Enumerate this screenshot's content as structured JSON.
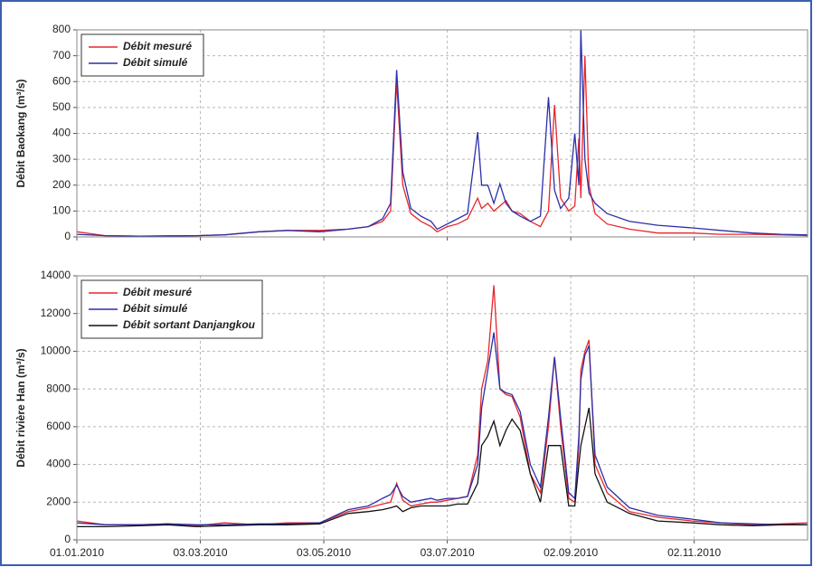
{
  "chart_data": [
    {
      "type": "line",
      "ylabel": "Débit Baokang (m³/s)",
      "x": [
        "01.01.2010",
        "15.01.2010",
        "01.02.2010",
        "15.02.2010",
        "01.03.2010",
        "15.03.2010",
        "01.04.2010",
        "15.04.2010",
        "01.05.2010",
        "15.05.2010",
        "25.05.2010",
        "01.06.2010",
        "05.06.2010",
        "08.06.2010",
        "11.06.2010",
        "15.06.2010",
        "20.06.2010",
        "25.06.2010",
        "28.06.2010",
        "03.07.2010",
        "08.07.2010",
        "13.07.2010",
        "18.07.2010",
        "20.07.2010",
        "23.07.2010",
        "26.07.2010",
        "29.07.2010",
        "01.08.2010",
        "04.08.2010",
        "08.08.2010",
        "13.08.2010",
        "18.08.2010",
        "22.08.2010",
        "25.08.2010",
        "28.08.2010",
        "01.09.2010",
        "04.09.2010",
        "06.09.2010",
        "07.09.2010",
        "09.09.2010",
        "11.09.2010",
        "14.09.2010",
        "20.09.2010",
        "01.10.2010",
        "15.10.2010",
        "01.11.2010",
        "15.11.2010",
        "01.12.2010",
        "15.12.2010",
        "28.12.2010"
      ],
      "xlim": [
        "01.01.2010",
        "28.12.2010"
      ],
      "ylim": [
        0,
        800
      ],
      "yticks": [
        0,
        100,
        200,
        300,
        400,
        500,
        600,
        700,
        800
      ],
      "grid": true,
      "legend": "upper left",
      "series": [
        {
          "name": "Débit mesuré",
          "color": "#e8262b",
          "values": [
            20,
            5,
            3,
            5,
            5,
            8,
            20,
            25,
            25,
            30,
            40,
            60,
            100,
            600,
            200,
            90,
            60,
            40,
            20,
            40,
            50,
            70,
            150,
            110,
            130,
            100,
            120,
            140,
            100,
            90,
            60,
            40,
            100,
            510,
            150,
            100,
            120,
            380,
            150,
            700,
            200,
            90,
            50,
            30,
            15,
            15,
            10,
            10,
            8,
            5
          ]
        },
        {
          "name": "Débit simulé",
          "color": "#2b2fa8",
          "values": [
            10,
            5,
            3,
            3,
            5,
            8,
            20,
            25,
            20,
            30,
            40,
            70,
            130,
            645,
            250,
            110,
            80,
            60,
            30,
            50,
            70,
            90,
            405,
            200,
            200,
            130,
            205,
            130,
            100,
            80,
            60,
            80,
            540,
            180,
            110,
            150,
            400,
            200,
            800,
            300,
            170,
            130,
            90,
            60,
            45,
            35,
            25,
            15,
            10,
            8
          ]
        }
      ]
    },
    {
      "type": "line",
      "ylabel": "Débit rivière Han (m³/s)",
      "x": [
        "01.01.2010",
        "15.01.2010",
        "01.02.2010",
        "15.02.2010",
        "01.03.2010",
        "15.03.2010",
        "01.04.2010",
        "15.04.2010",
        "01.05.2010",
        "15.05.2010",
        "25.05.2010",
        "01.06.2010",
        "05.06.2010",
        "08.06.2010",
        "11.06.2010",
        "15.06.2010",
        "20.06.2010",
        "25.06.2010",
        "28.06.2010",
        "03.07.2010",
        "08.07.2010",
        "13.07.2010",
        "18.07.2010",
        "20.07.2010",
        "23.07.2010",
        "26.07.2010",
        "29.07.2010",
        "01.08.2010",
        "04.08.2010",
        "08.08.2010",
        "13.08.2010",
        "18.08.2010",
        "22.08.2010",
        "25.08.2010",
        "28.08.2010",
        "01.09.2010",
        "04.09.2010",
        "06.09.2010",
        "07.09.2010",
        "09.09.2010",
        "11.09.2010",
        "14.09.2010",
        "20.09.2010",
        "01.10.2010",
        "15.10.2010",
        "01.11.2010",
        "15.11.2010",
        "01.12.2010",
        "15.12.2010",
        "28.12.2010"
      ],
      "xlim": [
        "01.01.2010",
        "28.12.2010"
      ],
      "xticks": [
        "01.01.2010",
        "03.03.2010",
        "03.05.2010",
        "03.07.2010",
        "02.09.2010",
        "02.11.2010"
      ],
      "ylim": [
        0,
        14000
      ],
      "yticks": [
        0,
        2000,
        4000,
        6000,
        8000,
        10000,
        12000,
        14000
      ],
      "grid": true,
      "legend": "upper left",
      "series": [
        {
          "name": "Débit mesuré",
          "color": "#e8262b",
          "values": [
            1000,
            800,
            800,
            850,
            750,
            900,
            800,
            900,
            900,
            1500,
            1700,
            1900,
            2000,
            3000,
            2100,
            1800,
            1900,
            2000,
            2000,
            2100,
            2200,
            2300,
            4500,
            8000,
            9500,
            13500,
            8000,
            7700,
            7600,
            6500,
            3500,
            2500,
            6000,
            9700,
            6000,
            2200,
            2000,
            5000,
            9000,
            10000,
            10600,
            4000,
            2500,
            1500,
            1200,
            1000,
            900,
            800,
            850,
            900
          ]
        },
        {
          "name": "Débit simulé",
          "color": "#2b2fa8",
          "values": [
            900,
            800,
            800,
            850,
            800,
            800,
            850,
            850,
            900,
            1600,
            1800,
            2200,
            2400,
            2900,
            2300,
            2000,
            2100,
            2200,
            2100,
            2200,
            2200,
            2300,
            4000,
            7000,
            9000,
            11000,
            8000,
            7800,
            7700,
            6800,
            4000,
            2800,
            6500,
            9700,
            6500,
            2500,
            2200,
            5500,
            8500,
            9800,
            10300,
            4500,
            2800,
            1700,
            1300,
            1100,
            900,
            850,
            800,
            800
          ]
        },
        {
          "name": "Débit sortant Danjangkou",
          "color": "#111111",
          "values": [
            700,
            700,
            750,
            800,
            700,
            750,
            800,
            800,
            850,
            1400,
            1500,
            1600,
            1700,
            1800,
            1500,
            1700,
            1800,
            1800,
            1800,
            1800,
            1900,
            1900,
            3000,
            5000,
            5500,
            6300,
            5000,
            5800,
            6400,
            5800,
            3500,
            2000,
            5000,
            5000,
            5000,
            1800,
            1800,
            4000,
            5000,
            6000,
            7000,
            3500,
            2000,
            1400,
            1000,
            900,
            800,
            750,
            800,
            800
          ]
        }
      ]
    }
  ]
}
